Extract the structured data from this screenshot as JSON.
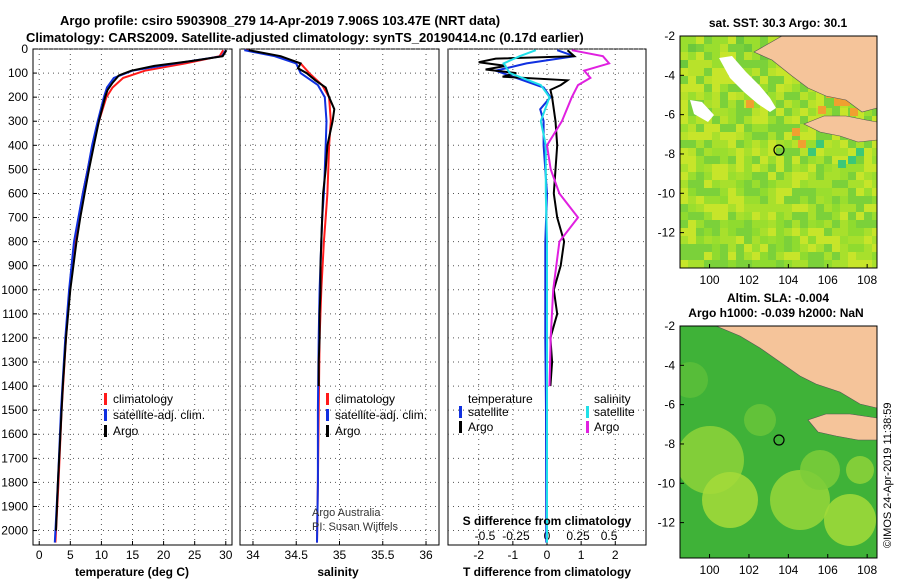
{
  "titles": {
    "line1": "Argo profile: csiro 5903908_279 14-Apr-2019 7.906S 103.47E (NRT data)",
    "line2": "Climatology: CARS2009. Satellite-adjusted climatology: synTS_20190414.nc (0.17d earlier)"
  },
  "watermark": "©IMOS 24-Apr-2019 11:38:59",
  "colors": {
    "climatology": "#ff1a1a",
    "satellite": "#1030e0",
    "argo": "#000000",
    "salinity_satellite": "#20e0e8",
    "salinity_argo": "#e020e0",
    "land": "#f5c49a"
  },
  "chart_data": [
    {
      "type": "line",
      "title": "Temperature profile",
      "xlabel": "temperature (deg C)",
      "xlim": [
        -1,
        31
      ],
      "xticks": [
        "0",
        "5",
        "10",
        "15",
        "20",
        "25",
        "30"
      ],
      "ylim": [
        2060,
        0
      ],
      "yticks": [
        "0",
        "100",
        "200",
        "300",
        "400",
        "500",
        "600",
        "700",
        "800",
        "900",
        "1000",
        "1100",
        "1200",
        "1300",
        "1400",
        "1500",
        "1600",
        "1700",
        "1800",
        "1900",
        "2000"
      ],
      "legend": [
        "climatology",
        "satellite-adj. clim.",
        "Argo"
      ],
      "series": [
        {
          "name": "climatology",
          "depth": [
            5,
            30,
            60,
            90,
            120,
            160,
            200,
            300,
            400,
            500,
            600,
            800,
            1000,
            1200,
            1500,
            1800,
            2050
          ],
          "value": [
            29.6,
            29.0,
            23.5,
            17.0,
            13.5,
            11.8,
            10.8,
            9.6,
            8.6,
            7.8,
            7.0,
            5.7,
            4.9,
            4.3,
            3.6,
            3.1,
            2.6
          ]
        },
        {
          "name": "satellite-adj. clim.",
          "depth": [
            5,
            30,
            60,
            90,
            120,
            160,
            200,
            300,
            400,
            500,
            600,
            800,
            1000,
            1200,
            1500,
            1800,
            2050
          ],
          "value": [
            30.0,
            29.4,
            22.0,
            15.0,
            12.0,
            10.9,
            10.4,
            9.4,
            8.5,
            7.8,
            7.0,
            5.6,
            4.8,
            4.2,
            3.5,
            3.0,
            2.5
          ]
        },
        {
          "name": "Argo",
          "depth": [
            5,
            30,
            50,
            70,
            90,
            110,
            140,
            170,
            200,
            300,
            400,
            500,
            600,
            700,
            800,
            1000,
            1200,
            1400,
            1600,
            1800,
            2000
          ],
          "value": [
            30.1,
            29.5,
            24.5,
            18.5,
            14.8,
            12.8,
            11.8,
            11.0,
            10.6,
            9.6,
            8.8,
            8.0,
            7.3,
            6.6,
            6.0,
            5.0,
            4.3,
            3.8,
            3.4,
            3.0,
            2.7
          ]
        }
      ]
    },
    {
      "type": "line",
      "title": "Salinity profile",
      "xlabel": "salinity",
      "xlim": [
        33.85,
        36.15
      ],
      "xticks": [
        "34",
        "34.5",
        "35",
        "35.5",
        "36"
      ],
      "ylim": [
        2060,
        0
      ],
      "legend": [
        "climatology",
        "satellite-adj. clim.",
        "Argo"
      ],
      "annotation": [
        "Argo Australia",
        "PI: Susan Wijffels"
      ],
      "series": [
        {
          "name": "climatology",
          "depth": [
            5,
            30,
            60,
            100,
            150,
            200,
            300,
            400,
            500,
            600,
            700,
            800,
            1000,
            1200,
            1500,
            1800,
            2050
          ],
          "value": [
            33.92,
            34.3,
            34.55,
            34.65,
            34.8,
            34.88,
            34.9,
            34.88,
            34.87,
            34.86,
            34.84,
            34.82,
            34.79,
            34.77,
            34.76,
            34.75,
            34.74
          ]
        },
        {
          "name": "satellite-adj. clim.",
          "depth": [
            5,
            30,
            60,
            100,
            150,
            200,
            300,
            400,
            500,
            600,
            700,
            800,
            1000,
            1200,
            1500,
            1800,
            2050
          ],
          "value": [
            33.9,
            34.25,
            34.5,
            34.55,
            34.75,
            34.83,
            34.85,
            34.84,
            34.83,
            34.82,
            34.8,
            34.79,
            34.77,
            34.76,
            34.75,
            34.75,
            34.74
          ]
        },
        {
          "name": "Argo",
          "depth": [
            5,
            30,
            60,
            80,
            100,
            130,
            160,
            200,
            250,
            300,
            400,
            500,
            600,
            700,
            800,
            900,
            1000,
            1100,
            1200,
            1300,
            1400
          ],
          "value": [
            33.95,
            34.32,
            34.55,
            34.52,
            34.62,
            34.72,
            34.84,
            34.88,
            34.94,
            34.92,
            34.86,
            34.84,
            34.81,
            34.8,
            34.79,
            34.78,
            34.78,
            34.77,
            34.77,
            34.76,
            34.76
          ]
        }
      ]
    },
    {
      "type": "line",
      "title": "Difference from climatology",
      "xlabel": "T difference from climatology",
      "xlabel_top": "S difference from climatology",
      "xlim": [
        -2.9,
        2.9
      ],
      "xticks": [
        "-2",
        "-1",
        "0",
        "1",
        "2"
      ],
      "xticks_top": [
        "-0.5",
        "-0.25",
        "0",
        "0.25",
        "0.5"
      ],
      "ylim": [
        2060,
        0
      ],
      "legend_left": {
        "heading": "temperature",
        "items": [
          "satellite",
          "Argo"
        ]
      },
      "legend_right": {
        "heading": "salinity",
        "items": [
          "satellite",
          "Argo"
        ]
      },
      "series": [
        {
          "name": "temperature satellite",
          "depth": [
            5,
            30,
            60,
            90,
            120,
            160,
            200,
            250,
            300,
            400,
            600,
            800,
            1000,
            1200,
            1500,
            2050
          ],
          "value": [
            0.3,
            0.8,
            -0.6,
            -1.5,
            -0.9,
            -0.1,
            0.1,
            -0.2,
            -0.1,
            -0.1,
            0.0,
            -0.05,
            -0.05,
            -0.05,
            -0.03,
            -0.02
          ]
        },
        {
          "name": "temperature Argo",
          "depth": [
            5,
            30,
            40,
            55,
            70,
            85,
            100,
            115,
            130,
            150,
            170,
            200,
            250,
            300,
            400,
            500,
            600,
            700,
            800,
            900,
            1000,
            1100,
            1200,
            1300,
            1400
          ],
          "value": [
            0.6,
            0.8,
            -1.5,
            -2.0,
            -1.2,
            -1.8,
            -0.9,
            -1.3,
            0.6,
            0.4,
            0.1,
            0.15,
            0.2,
            0.25,
            0.3,
            0.25,
            0.2,
            0.3,
            0.5,
            0.4,
            0.2,
            0.3,
            0.1,
            0.15,
            0.1
          ]
        },
        {
          "name": "salinity satellite",
          "depth": [
            5,
            30,
            60,
            100,
            150,
            200,
            300,
            400,
            600,
            800,
            1000,
            1200,
            1500,
            2050
          ],
          "value": [
            -0.09,
            -0.22,
            -0.35,
            -0.3,
            -0.05,
            0.02,
            -0.05,
            -0.01,
            -0.01,
            0.0,
            0.0,
            0.0,
            0.0,
            0.0
          ]
        },
        {
          "name": "salinity Argo",
          "depth": [
            5,
            30,
            60,
            90,
            120,
            150,
            200,
            300,
            400,
            500,
            600,
            700,
            800,
            1000,
            1200,
            1400
          ],
          "value": [
            0.2,
            0.45,
            0.5,
            0.3,
            0.35,
            0.25,
            0.2,
            0.12,
            0.0,
            0.03,
            0.1,
            0.25,
            0.1,
            0.05,
            0.03,
            0.02
          ]
        }
      ]
    },
    {
      "type": "heatmap",
      "title": "sat. SST: 30.3 Argo: 30.1",
      "xticks": [
        "100",
        "102",
        "104",
        "106",
        "108"
      ],
      "yticks": [
        "-2",
        "-4",
        "-6",
        "-8",
        "-10",
        "-12"
      ],
      "xlim": [
        98.5,
        108.5
      ],
      "ylim": [
        -13.8,
        -2
      ],
      "marker": {
        "lon": 103.47,
        "lat": -7.906
      }
    },
    {
      "type": "heatmap",
      "title": "Altim. SLA: -0.004",
      "subtitle": "Argo h1000: -0.039 h2000: NaN",
      "xticks": [
        "100",
        "102",
        "104",
        "106",
        "108"
      ],
      "yticks": [
        "-2",
        "-4",
        "-6",
        "-8",
        "-10",
        "-12"
      ],
      "xlim": [
        98.5,
        108.5
      ],
      "ylim": [
        -13.8,
        -2
      ],
      "marker": {
        "lon": 103.47,
        "lat": -7.906
      }
    }
  ]
}
